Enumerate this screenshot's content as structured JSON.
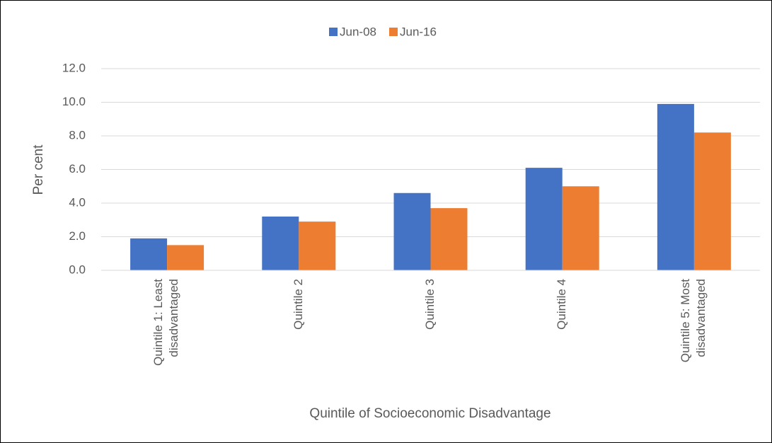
{
  "chart_data": {
    "type": "bar",
    "categories": [
      "Quintile 1: Least disadvantaged",
      "Quintile 2",
      "Quintile 3",
      "Quintile 4",
      "Quintile 5: Most disadvantaged"
    ],
    "series": [
      {
        "name": "Jun-08",
        "color": "#4472c4",
        "values": [
          1.9,
          3.2,
          4.6,
          6.1,
          9.9
        ]
      },
      {
        "name": "Jun-16",
        "color": "#ed7d31",
        "values": [
          1.5,
          2.9,
          3.7,
          5.0,
          8.2
        ]
      }
    ],
    "x_label": "Quintile of Socioeconomic Disadvantage",
    "y_label": "Per cent",
    "ylim": [
      0,
      12
    ],
    "yticks": [
      {
        "value": 0,
        "label": "0.0"
      },
      {
        "value": 2,
        "label": "2.0"
      },
      {
        "value": 4,
        "label": "4.0"
      },
      {
        "value": 6,
        "label": "6.0"
      },
      {
        "value": 8,
        "label": "8.0"
      },
      {
        "value": 10,
        "label": "10.0"
      },
      {
        "value": 12,
        "label": "12.0"
      }
    ],
    "grid": true,
    "legend": "top"
  }
}
